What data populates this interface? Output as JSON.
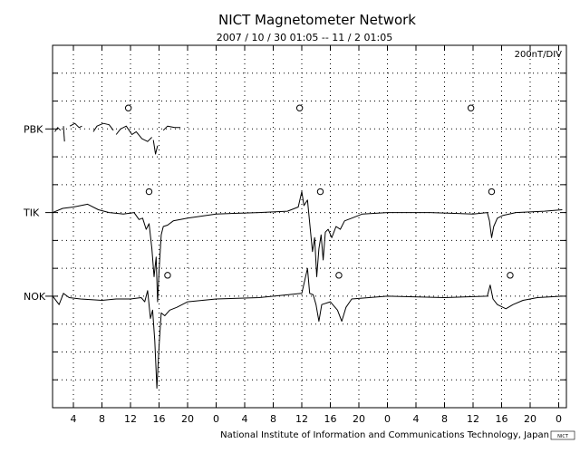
{
  "chart_data": {
    "type": "line",
    "title": "NICT Magnetometer Network",
    "subtitle": "2007 / 10 / 30   01:05 -- 11 / 2   01:05",
    "scale_label": "200nT/DIV",
    "footer": "National Institute of Information and Communications Technology, Japan",
    "logo_text": "NICT",
    "grid": true,
    "x_unit": "hour of day",
    "x_range_hours": [
      1.08,
      73.08
    ],
    "x_tick_labels": [
      "4",
      "8",
      "12",
      "16",
      "20",
      "0",
      "4",
      "8",
      "12",
      "16",
      "20",
      "0",
      "4",
      "8",
      "12",
      "16",
      "20",
      "0"
    ],
    "x_tick_hours": [
      4,
      8,
      12,
      16,
      20,
      24,
      28,
      32,
      36,
      40,
      44,
      48,
      52,
      56,
      60,
      64,
      68,
      72
    ],
    "y_divisions": 13,
    "stations": [
      {
        "name": "PBK",
        "baseline_division": 3,
        "noon_marker_hours": [
          11.7,
          35.7,
          59.7
        ],
        "segments": [
          [
            [
              1.4,
              -0.1
            ],
            [
              1.8,
              0.05
            ],
            [
              2.2,
              -0.05
            ]
          ],
          [
            [
              2.6,
              0.1
            ],
            [
              2.75,
              -0.45
            ]
          ],
          [
            [
              3.5,
              0.1
            ],
            [
              4.2,
              0.2
            ],
            [
              4.8,
              0.05
            ],
            [
              5.2,
              0.1
            ]
          ],
          [
            [
              6.8,
              -0.1
            ],
            [
              7.3,
              0.1
            ],
            [
              8.2,
              0.2
            ],
            [
              9.0,
              0.15
            ],
            [
              9.6,
              -0.05
            ]
          ],
          [
            [
              10.0,
              -0.2
            ],
            [
              10.6,
              0.0
            ],
            [
              11.4,
              0.1
            ],
            [
              12.2,
              -0.2
            ],
            [
              12.8,
              -0.1
            ],
            [
              13.6,
              -0.35
            ],
            [
              14.4,
              -0.45
            ],
            [
              15.0,
              -0.3
            ]
          ],
          [
            [
              15.2,
              -0.4
            ],
            [
              15.5,
              -0.9
            ],
            [
              15.8,
              -0.6
            ]
          ],
          [
            [
              16.6,
              -0.05
            ],
            [
              17.2,
              0.1
            ],
            [
              18.2,
              0.05
            ],
            [
              19.0,
              0.05
            ]
          ]
        ]
      },
      {
        "name": "TIK",
        "baseline_division": 6,
        "noon_marker_hours": [
          14.6,
          38.6,
          62.6
        ],
        "segments": [
          [
            [
              1.1,
              0.0
            ],
            [
              2.5,
              0.15
            ],
            [
              4.0,
              0.2
            ],
            [
              6.0,
              0.3
            ],
            [
              7.5,
              0.1
            ],
            [
              9.0,
              0.0
            ],
            [
              11.0,
              -0.05
            ],
            [
              12.5,
              0.0
            ],
            [
              13.2,
              -0.25
            ],
            [
              13.7,
              -0.2
            ],
            [
              14.2,
              -0.6
            ],
            [
              14.6,
              -0.4
            ],
            [
              15.0,
              -1.3
            ],
            [
              15.3,
              -2.3
            ],
            [
              15.6,
              -1.6
            ],
            [
              15.8,
              -3.2
            ],
            [
              16.0,
              -2.1
            ],
            [
              16.3,
              -0.8
            ],
            [
              16.6,
              -0.5
            ],
            [
              17.2,
              -0.45
            ],
            [
              18.0,
              -0.3
            ],
            [
              20.0,
              -0.2
            ],
            [
              24.0,
              -0.05
            ],
            [
              30.0,
              0.0
            ],
            [
              34.0,
              0.05
            ],
            [
              35.5,
              0.2
            ],
            [
              36.0,
              0.75
            ],
            [
              36.3,
              0.25
            ],
            [
              36.8,
              0.45
            ],
            [
              37.2,
              -0.6
            ],
            [
              37.5,
              -1.4
            ],
            [
              37.8,
              -0.9
            ],
            [
              38.1,
              -2.3
            ],
            [
              38.4,
              -1.3
            ],
            [
              38.7,
              -0.8
            ],
            [
              39.0,
              -1.7
            ],
            [
              39.3,
              -0.7
            ],
            [
              39.7,
              -0.6
            ],
            [
              40.2,
              -0.9
            ],
            [
              40.8,
              -0.5
            ],
            [
              41.4,
              -0.6
            ],
            [
              42.0,
              -0.3
            ],
            [
              43.0,
              -0.2
            ],
            [
              44.5,
              -0.05
            ],
            [
              48.0,
              0.0
            ],
            [
              54.0,
              0.0
            ],
            [
              60.0,
              -0.05
            ],
            [
              62.0,
              0.0
            ],
            [
              62.3,
              -0.3
            ],
            [
              62.6,
              -0.9
            ],
            [
              62.9,
              -0.5
            ],
            [
              63.4,
              -0.2
            ],
            [
              64.2,
              -0.1
            ],
            [
              66.0,
              0.0
            ],
            [
              70.0,
              0.05
            ],
            [
              72.5,
              0.1
            ]
          ]
        ]
      },
      {
        "name": "NOK",
        "baseline_division": 9,
        "noon_marker_hours": [
          17.2,
          41.2,
          65.2
        ],
        "segments": [
          [
            [
              1.1,
              0.0
            ],
            [
              2.0,
              -0.3
            ],
            [
              2.6,
              0.1
            ],
            [
              3.4,
              -0.05
            ],
            [
              5.0,
              -0.1
            ],
            [
              8.0,
              -0.15
            ],
            [
              10.0,
              -0.1
            ],
            [
              12.0,
              -0.1
            ],
            [
              13.5,
              -0.05
            ],
            [
              14.0,
              -0.2
            ],
            [
              14.4,
              0.2
            ],
            [
              14.8,
              -0.8
            ],
            [
              15.1,
              -0.5
            ],
            [
              15.4,
              -1.6
            ],
            [
              15.7,
              -3.3
            ],
            [
              16.0,
              -1.8
            ],
            [
              16.3,
              -0.6
            ],
            [
              16.8,
              -0.7
            ],
            [
              17.5,
              -0.5
            ],
            [
              18.5,
              -0.4
            ],
            [
              20.0,
              -0.2
            ],
            [
              24.0,
              -0.1
            ],
            [
              30.0,
              -0.05
            ],
            [
              34.0,
              0.05
            ],
            [
              36.0,
              0.1
            ],
            [
              36.8,
              1.0
            ],
            [
              37.1,
              0.1
            ],
            [
              37.6,
              0.05
            ],
            [
              38.0,
              -0.3
            ],
            [
              38.4,
              -0.9
            ],
            [
              38.8,
              -0.3
            ],
            [
              40.0,
              -0.2
            ],
            [
              41.0,
              -0.5
            ],
            [
              41.6,
              -0.9
            ],
            [
              42.2,
              -0.4
            ],
            [
              43.0,
              -0.1
            ],
            [
              48.0,
              0.0
            ],
            [
              56.0,
              -0.05
            ],
            [
              62.0,
              0.0
            ],
            [
              62.4,
              0.4
            ],
            [
              62.8,
              -0.1
            ],
            [
              63.4,
              -0.3
            ],
            [
              64.6,
              -0.45
            ],
            [
              65.6,
              -0.3
            ],
            [
              67.0,
              -0.15
            ],
            [
              69.0,
              -0.05
            ],
            [
              72.5,
              0.0
            ]
          ]
        ]
      }
    ]
  }
}
